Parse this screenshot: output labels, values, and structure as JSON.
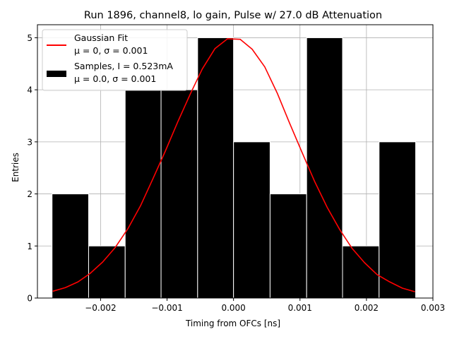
{
  "chart_data": {
    "type": "bar",
    "title": "Run 1896, channel8, lo gain, Pulse w/ 27.0 dB Attenuation",
    "xlabel": "Timing from OFCs [ns]",
    "ylabel": "Entries",
    "xlim": [
      -0.00295,
      0.003
    ],
    "ylim": [
      0,
      5.25
    ],
    "grid": true,
    "legend_position": "upper left",
    "x_ticks": [
      {
        "value": -0.002,
        "label": "−0.002"
      },
      {
        "value": -0.001,
        "label": "−0.001"
      },
      {
        "value": 0.0,
        "label": "0.000"
      },
      {
        "value": 0.001,
        "label": "0.001"
      },
      {
        "value": 0.002,
        "label": "0.002"
      },
      {
        "value": 0.003,
        "label": "0.003"
      }
    ],
    "y_ticks": [
      {
        "value": 0,
        "label": "0"
      },
      {
        "value": 1,
        "label": "1"
      },
      {
        "value": 2,
        "label": "2"
      },
      {
        "value": 3,
        "label": "3"
      },
      {
        "value": 4,
        "label": "4"
      },
      {
        "value": 5,
        "label": "5"
      }
    ],
    "histogram": {
      "name": "Samples, I = 0.523mA",
      "name_line2": "μ = 0.0, σ = 0.001",
      "color": "#000000",
      "edge_color": "#ffffff",
      "bin_edges": [
        -0.00273,
        -0.00218,
        -0.00163,
        -0.00109,
        -0.00054,
        0.0,
        0.00055,
        0.0011,
        0.00164,
        0.00219,
        0.00274
      ],
      "counts": [
        2,
        1,
        4,
        4,
        5,
        3,
        2,
        5,
        1,
        3
      ]
    },
    "fit": {
      "name": "Gaussian Fit",
      "name_line2": "μ = 0, σ = 0.001",
      "color": "#ff0000",
      "x": [
        -0.00272,
        -0.00253,
        -0.00234,
        -0.00216,
        -0.00197,
        -0.00178,
        -0.00159,
        -0.0014,
        -0.00122,
        -0.00103,
        -0.00084,
        -0.00065,
        -0.00047,
        -0.00028,
        -9e-05,
        0.0001,
        0.00028,
        0.00047,
        0.00066,
        0.00084,
        0.00103,
        0.00122,
        0.00141,
        0.0016,
        0.00178,
        0.00197,
        0.00216,
        0.00235,
        0.00254,
        0.00273
      ],
      "y": [
        0.13,
        0.2,
        0.31,
        0.47,
        0.69,
        0.97,
        1.33,
        1.77,
        2.27,
        2.81,
        3.38,
        3.92,
        4.4,
        4.79,
        4.98,
        4.97,
        4.78,
        4.44,
        3.93,
        3.37,
        2.8,
        2.24,
        1.74,
        1.31,
        0.96,
        0.68,
        0.45,
        0.31,
        0.19,
        0.12
      ]
    }
  }
}
